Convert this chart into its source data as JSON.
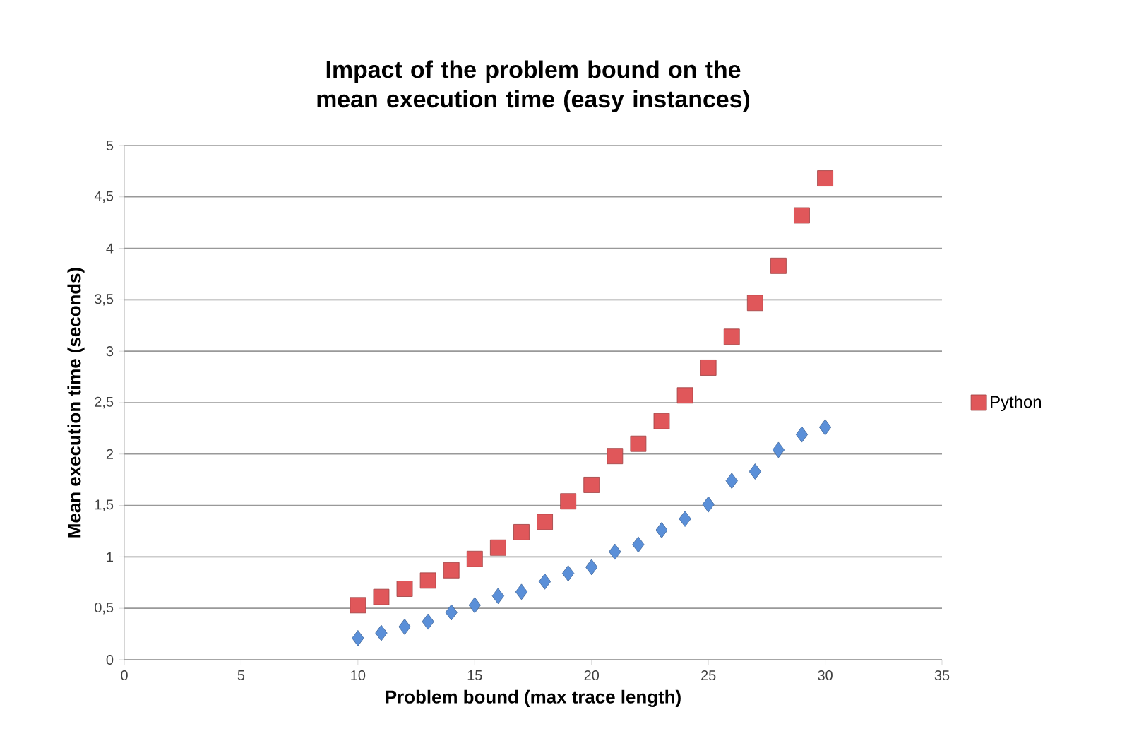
{
  "chart_data": {
    "type": "scatter",
    "title": "Impact of the problem bound on the mean execution time (easy instances)",
    "xlabel": "Problem bound (max trace length)",
    "ylabel": "Mean execution time (seconds)",
    "xlim": [
      0,
      35
    ],
    "xticks": [
      0,
      5,
      10,
      15,
      20,
      25,
      30,
      35
    ],
    "ylim": [
      0,
      5
    ],
    "yticks": [
      0,
      {
        "value": 0.5,
        "label": "0,5"
      },
      1,
      {
        "value": 1.5,
        "label": "1,5"
      },
      2,
      {
        "value": 2.5,
        "label": "2,5"
      },
      3,
      {
        "value": 3.5,
        "label": "3,5"
      },
      4,
      {
        "value": 4.5,
        "label": "4,5"
      },
      5
    ],
    "grid": "y",
    "legend": "right",
    "x": [
      10,
      11,
      12,
      13,
      14,
      15,
      16,
      17,
      18,
      19,
      20,
      21,
      22,
      23,
      24,
      25,
      26,
      27,
      28,
      29,
      30
    ],
    "series": [
      {
        "color": "#5a8fd8",
        "marker": "diamond",
        "values": [
          0.21,
          0.26,
          0.32,
          0.37,
          0.46,
          0.53,
          0.62,
          0.66,
          0.76,
          0.84,
          0.9,
          1.05,
          1.12,
          1.26,
          1.37,
          1.51,
          1.74,
          1.83,
          2.04,
          2.19,
          2.26
        ]
      },
      {
        "name": "Python",
        "color": "#e0575a",
        "marker": "square",
        "values": [
          0.53,
          0.61,
          0.69,
          0.77,
          0.87,
          0.98,
          1.09,
          1.24,
          1.34,
          1.54,
          1.7,
          1.98,
          2.1,
          2.32,
          2.57,
          2.84,
          3.14,
          3.47,
          3.83,
          4.32,
          4.68
        ]
      }
    ]
  }
}
